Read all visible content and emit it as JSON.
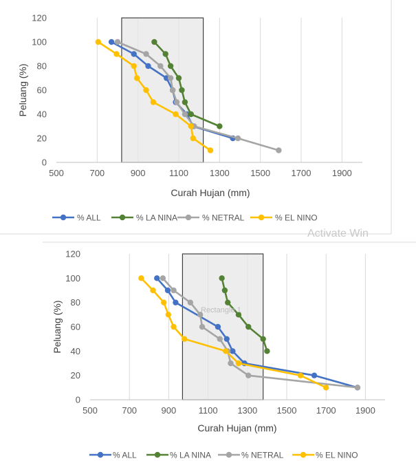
{
  "overlay": {
    "activate_watermark": "Activate Win",
    "rectangle_label": "Rectangle 1"
  },
  "chart_data": [
    {
      "type": "line",
      "xlabel": "Curah Hujan (mm)",
      "ylabel": "Peluang (%)",
      "xlim": [
        500,
        2000
      ],
      "ylim": [
        0,
        120
      ],
      "xticks": [
        500,
        700,
        900,
        1100,
        1300,
        1500,
        1700,
        1900
      ],
      "yticks": [
        0,
        20,
        40,
        60,
        80,
        100,
        120
      ],
      "grid": "vertical",
      "legend": "bottom",
      "highlight_range_x": [
        820,
        1220
      ],
      "series": [
        {
          "name": "% ALL",
          "color": "#4472C4",
          "points": [
            [
              770,
              100
            ],
            [
              880,
              90
            ],
            [
              950,
              80
            ],
            [
              1040,
              70
            ],
            [
              1070,
              60
            ],
            [
              1085,
              50
            ],
            [
              1140,
              40
            ],
            [
              1170,
              30
            ],
            [
              1365,
              20
            ]
          ]
        },
        {
          "name": "% LA NINA",
          "color": "#548235",
          "points": [
            [
              980,
              100
            ],
            [
              1035,
              90
            ],
            [
              1060,
              80
            ],
            [
              1100,
              70
            ],
            [
              1115,
              60
            ],
            [
              1130,
              50
            ],
            [
              1160,
              40
            ],
            [
              1300,
              30
            ]
          ]
        },
        {
          "name": "% NETRAL",
          "color": "#A5A5A5",
          "points": [
            [
              800,
              100
            ],
            [
              940,
              90
            ],
            [
              1010,
              80
            ],
            [
              1060,
              70
            ],
            [
              1070,
              60
            ],
            [
              1090,
              50
            ],
            [
              1130,
              40
            ],
            [
              1175,
              30
            ],
            [
              1390,
              20
            ],
            [
              1590,
              10
            ]
          ]
        },
        {
          "name": "% EL NINO",
          "color": "#FFC000",
          "points": [
            [
              705,
              100
            ],
            [
              795,
              90
            ],
            [
              880,
              80
            ],
            [
              895,
              70
            ],
            [
              940,
              60
            ],
            [
              975,
              50
            ],
            [
              1085,
              40
            ],
            [
              1160,
              30
            ],
            [
              1170,
              20
            ],
            [
              1255,
              10
            ]
          ]
        }
      ]
    },
    {
      "type": "line",
      "xlabel": "Curah Hujan (mm)",
      "ylabel": "Peluang (%)",
      "xlim": [
        500,
        2000
      ],
      "ylim": [
        0,
        120
      ],
      "xticks": [
        500,
        700,
        900,
        1100,
        1300,
        1500,
        1700,
        1900
      ],
      "yticks": [
        0,
        20,
        40,
        60,
        80,
        100,
        120
      ],
      "grid": "vertical",
      "legend": "bottom",
      "highlight_range_x": [
        970,
        1380
      ],
      "series": [
        {
          "name": "% ALL",
          "color": "#4472C4",
          "points": [
            [
              840,
              100
            ],
            [
              895,
              90
            ],
            [
              935,
              80
            ],
            [
              1150,
              60
            ],
            [
              1195,
              50
            ],
            [
              1225,
              40
            ],
            [
              1285,
              30
            ],
            [
              1640,
              20
            ],
            [
              1860,
              10
            ]
          ]
        },
        {
          "name": "% LA NINA",
          "color": "#548235",
          "points": [
            [
              1170,
              100
            ],
            [
              1185,
              90
            ],
            [
              1200,
              80
            ],
            [
              1255,
              70
            ],
            [
              1305,
              60
            ],
            [
              1380,
              50
            ],
            [
              1400,
              40
            ]
          ]
        },
        {
          "name": "% NETRAL",
          "color": "#A5A5A5",
          "points": [
            [
              870,
              100
            ],
            [
              925,
              90
            ],
            [
              1010,
              80
            ],
            [
              1060,
              70
            ],
            [
              1070,
              60
            ],
            [
              1160,
              50
            ],
            [
              1200,
              40
            ],
            [
              1215,
              30
            ],
            [
              1305,
              20
            ],
            [
              1860,
              10
            ]
          ]
        },
        {
          "name": "% EL NINO",
          "color": "#FFC000",
          "points": [
            [
              760,
              100
            ],
            [
              820,
              90
            ],
            [
              875,
              80
            ],
            [
              898,
              70
            ],
            [
              925,
              60
            ],
            [
              980,
              50
            ],
            [
              1190,
              40
            ],
            [
              1255,
              30
            ],
            [
              1570,
              20
            ],
            [
              1700,
              10
            ]
          ]
        }
      ]
    }
  ]
}
